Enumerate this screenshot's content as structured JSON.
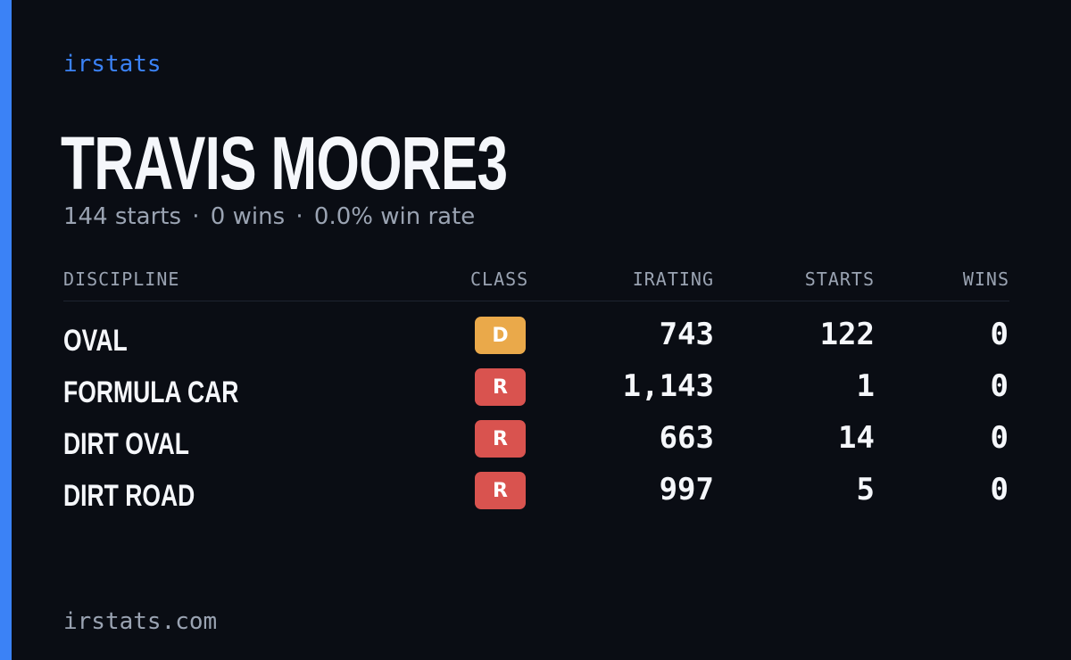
{
  "brand": "irstats",
  "driver": {
    "name": "TRAVIS MOORE3",
    "starts_text": "144 starts",
    "wins_text": "0 wins",
    "win_rate_text": "0.0% win rate",
    "separator": "·"
  },
  "table": {
    "headers": {
      "discipline": "DISCIPLINE",
      "class": "CLASS",
      "irating": "IRATING",
      "starts": "STARTS",
      "wins": "WINS"
    },
    "rows": [
      {
        "discipline": "OVAL",
        "class": "D",
        "class_color": "#eaa94a",
        "irating": "743",
        "starts": "122",
        "wins": "0"
      },
      {
        "discipline": "FORMULA CAR",
        "class": "R",
        "class_color": "#d9534f",
        "irating": "1,143",
        "starts": "1",
        "wins": "0"
      },
      {
        "discipline": "DIRT OVAL",
        "class": "R",
        "class_color": "#d9534f",
        "irating": "663",
        "starts": "14",
        "wins": "0"
      },
      {
        "discipline": "DIRT ROAD",
        "class": "R",
        "class_color": "#d9534f",
        "irating": "997",
        "starts": "5",
        "wins": "0"
      }
    ]
  },
  "footer": "irstats.com",
  "colors": {
    "accent": "#3b82f6",
    "background": "#0a0d14"
  }
}
